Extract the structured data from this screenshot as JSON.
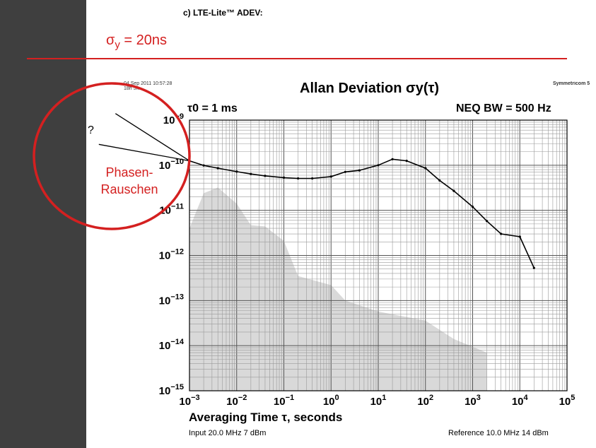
{
  "slide": {
    "section_title": "c)  LTE-Lite™ ADEV:",
    "sigma_prefix": "σ",
    "sigma_sub": "y",
    "sigma_value": " = 20ns"
  },
  "meta": {
    "date": "04 Sep 2011 10:57:28",
    "duration": "18h 5m",
    "brand": "Symmetricom 5"
  },
  "annotations": {
    "phase_line1": "Phasen-",
    "phase_line2": "Rauschen",
    "question": "?"
  },
  "colors": {
    "red_accent": "#d42020",
    "left_bar": "#3f3f3f",
    "noise_floor": "#d9d9d9"
  },
  "chart_data": {
    "type": "line",
    "title": "Allan Deviation σy(τ)",
    "tau0_label": "τ0 = 1 ms",
    "bandwidth_label": "NEQ BW = 500 Hz",
    "xlabel": "Averaging Time τ, seconds",
    "input_note": "Input 20.0 MHz 7 dBm",
    "reference_note": "Reference 10.0 MHz 14 dBm",
    "x_scale": "log",
    "y_scale": "log",
    "xlim": [
      0.001,
      100000
    ],
    "ylim": [
      1e-15,
      1e-09
    ],
    "grid": true,
    "x_ticks": [
      {
        "value": 0.001,
        "base": "10",
        "exp": "−3"
      },
      {
        "value": 0.01,
        "base": "10",
        "exp": "−2"
      },
      {
        "value": 0.1,
        "base": "10",
        "exp": "−1"
      },
      {
        "value": 1,
        "base": "10",
        "exp": "0"
      },
      {
        "value": 10,
        "base": "10",
        "exp": "1"
      },
      {
        "value": 100,
        "base": "10",
        "exp": "2"
      },
      {
        "value": 1000,
        "base": "10",
        "exp": "3"
      },
      {
        "value": 10000,
        "base": "10",
        "exp": "4"
      },
      {
        "value": 100000,
        "base": "10",
        "exp": "5"
      }
    ],
    "y_ticks": [
      {
        "value": 1e-09,
        "base": "10",
        "exp": "−9"
      },
      {
        "value": 1e-10,
        "base": "10",
        "exp": "−10"
      },
      {
        "value": 1e-11,
        "base": "10",
        "exp": "−11"
      },
      {
        "value": 1e-12,
        "base": "10",
        "exp": "−12"
      },
      {
        "value": 1e-13,
        "base": "10",
        "exp": "−13"
      },
      {
        "value": 1e-14,
        "base": "10",
        "exp": "−14"
      },
      {
        "value": 1e-15,
        "base": "10",
        "exp": "−15"
      }
    ],
    "series": [
      {
        "color": "#000000",
        "points": [
          [
            0.001,
            1.25e-10
          ],
          [
            0.002,
            9.9e-11
          ],
          [
            0.004,
            8.6e-11
          ],
          [
            0.01,
            7.2e-11
          ],
          [
            0.02,
            6.4e-11
          ],
          [
            0.04,
            5.8e-11
          ],
          [
            0.1,
            5.3e-11
          ],
          [
            0.2,
            5.1e-11
          ],
          [
            0.4,
            5.1e-11
          ],
          [
            1,
            5.6e-11
          ],
          [
            2,
            7.1e-11
          ],
          [
            4,
            7.7e-11
          ],
          [
            10,
            1e-10
          ],
          [
            20,
            1.36e-10
          ],
          [
            40,
            1.25e-10
          ],
          [
            100,
            8.6e-11
          ],
          [
            200,
            4.6e-11
          ],
          [
            400,
            2.7e-11
          ],
          [
            1000,
            1.2e-11
          ],
          [
            2000,
            5.8e-12
          ],
          [
            4000,
            3e-12
          ],
          [
            10000,
            2.6e-12
          ],
          [
            20000,
            5.3e-13
          ]
        ]
      }
    ],
    "noise_floor": {
      "color": "#d9d9d9",
      "points": [
        [
          0.001,
          4e-12
        ],
        [
          0.002,
          2.4e-11
        ],
        [
          0.004,
          3.2e-11
        ],
        [
          0.01,
          1.4e-11
        ],
        [
          0.02,
          4.7e-12
        ],
        [
          0.04,
          4.4e-12
        ],
        [
          0.1,
          2.1e-12
        ],
        [
          0.2,
          3.5e-13
        ],
        [
          1,
          2.2e-13
        ],
        [
          2,
          1e-13
        ],
        [
          10,
          5.7e-14
        ],
        [
          100,
          3.6e-14
        ],
        [
          400,
          1.4e-14
        ],
        [
          2000,
          7e-15
        ]
      ]
    },
    "overlay_lines": [
      [
        [
          2.7e-05,
          1.4e-09
        ],
        [
          0.001,
          1.25e-10
        ]
      ],
      [
        [
          1.2e-05,
          2.9e-10
        ],
        [
          0.001,
          1.25e-10
        ]
      ]
    ]
  }
}
